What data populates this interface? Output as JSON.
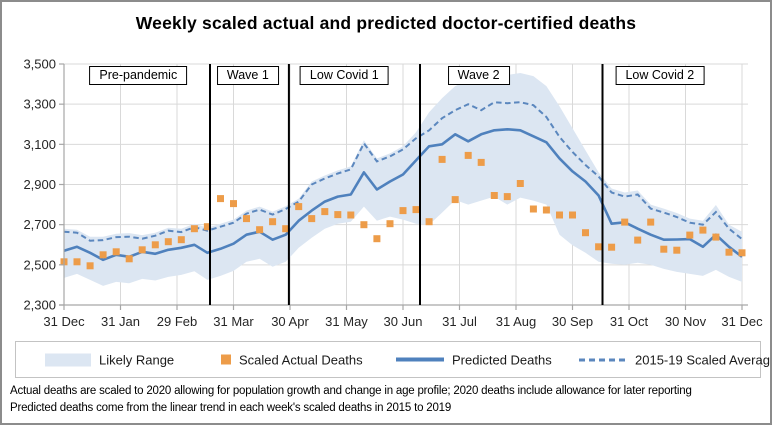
{
  "title": "Weekly scaled actual and predicted doctor-certified deaths",
  "footnotes": [
    "Actual deaths are scaled to 2020 allowing for population growth and change in age profile; 2020 deaths include allowance for later reporting",
    "Predicted deaths come from the linear trend in each week's scaled deaths in 2015 to 2019"
  ],
  "colors": {
    "line": "#4f81bd",
    "dashed_line": "#5b87be",
    "band": "#dce6f2",
    "marker": "#ed9c49",
    "grid": "#d9d9d9",
    "axis": "#a6a6a6",
    "tick_label": "#262626",
    "divider": "#000000"
  },
  "legend": [
    {
      "label": "Likely Range",
      "swatch": "band"
    },
    {
      "label": "Scaled Actual Deaths",
      "swatch": "square"
    },
    {
      "label": "Predicted Deaths",
      "swatch": "line"
    },
    {
      "label": "2015-19 Scaled Average",
      "swatch": "dashed"
    }
  ],
  "chart_data": {
    "type": "line",
    "title": "Weekly scaled actual and predicted doctor-certified deaths",
    "x_tick_labels": [
      "31 Dec",
      "31 Jan",
      "29 Feb",
      "31 Mar",
      "30 Apr",
      "31 May",
      "30 Jun",
      "31 Jul",
      "31 Aug",
      "30 Sep",
      "31 Oct",
      "30 Nov",
      "31 Dec"
    ],
    "y_min": 2300,
    "y_max": 3500,
    "y_tick_step": 200,
    "n_weeks": 53,
    "grid": true,
    "legend_position": "bottom",
    "period_dividers_week": [
      11.2,
      17.25,
      27.3,
      41.3
    ],
    "period_labels": [
      {
        "label": "Pre-pandemic",
        "center_week": 5.7
      },
      {
        "label": "Wave 1",
        "center_week": 14.1
      },
      {
        "label": "Low Covid 1",
        "center_week": 21.5
      },
      {
        "label": "Wave 2",
        "center_week": 31.8
      },
      {
        "label": "Low Covid 2",
        "center_week": 45.7
      }
    ],
    "series": [
      {
        "name": "Likely Range",
        "type": "band",
        "low": [
          2435,
          2455,
          2425,
          2395,
          2415,
          2408,
          2430,
          2422,
          2440,
          2450,
          2468,
          2425,
          2445,
          2470,
          2515,
          2530,
          2490,
          2515,
          2585,
          2635,
          2680,
          2705,
          2715,
          2790,
          2720,
          2740,
          2725,
          2705,
          2700,
          2760,
          2823,
          2800,
          2820,
          2840,
          2800,
          2835,
          2820,
          2800,
          2650,
          2598,
          2560,
          2515,
          2505,
          2500,
          2510,
          2500,
          2480,
          2465,
          2455,
          2445,
          2475,
          2440,
          2415
        ],
        "high": [
          2680,
          2675,
          2640,
          2640,
          2655,
          2658,
          2648,
          2660,
          2685,
          2680,
          2705,
          2685,
          2705,
          2725,
          2770,
          2790,
          2765,
          2792,
          2830,
          2915,
          2945,
          2970,
          2990,
          3120,
          3030,
          3055,
          3090,
          3160,
          3260,
          3330,
          3390,
          3420,
          3430,
          3450,
          3445,
          3455,
          3440,
          3390,
          3290,
          3180,
          3070,
          2960,
          2880,
          2860,
          2870,
          2800,
          2780,
          2758,
          2730,
          2720,
          2798,
          2700,
          2665
        ]
      },
      {
        "name": "Scaled Actual Deaths",
        "type": "scatter",
        "values": [
          2515,
          2515,
          2495,
          2550,
          2565,
          2530,
          2575,
          2600,
          2615,
          2625,
          2680,
          2690,
          2830,
          2805,
          2730,
          2675,
          2715,
          2680,
          2790,
          2730,
          2765,
          2750,
          2748,
          2700,
          2630,
          2705,
          2770,
          2775,
          2715,
          3025,
          2825,
          3045,
          3010,
          2845,
          2840,
          2905,
          2778,
          2773,
          2748,
          2748,
          2660,
          2590,
          2588,
          2713,
          2623,
          2713,
          2578,
          2573,
          2648,
          2673,
          2638,
          2563,
          2560
        ]
      },
      {
        "name": "Predicted Deaths",
        "type": "line",
        "style": "solid",
        "values": [
          2570,
          2590,
          2560,
          2525,
          2550,
          2540,
          2565,
          2555,
          2575,
          2585,
          2600,
          2560,
          2580,
          2605,
          2650,
          2665,
          2625,
          2650,
          2720,
          2770,
          2815,
          2840,
          2850,
          2960,
          2875,
          2915,
          2950,
          3020,
          3090,
          3100,
          3150,
          3115,
          3150,
          3170,
          3175,
          3170,
          3140,
          3110,
          3030,
          2965,
          2915,
          2845,
          2705,
          2712,
          2680,
          2650,
          2625,
          2626,
          2628,
          2590,
          2650,
          2590,
          2540
        ]
      },
      {
        "name": "2015-19 Scaled Average",
        "type": "line",
        "style": "dashed",
        "values": [
          2665,
          2660,
          2620,
          2623,
          2638,
          2640,
          2630,
          2645,
          2670,
          2663,
          2688,
          2670,
          2690,
          2710,
          2755,
          2775,
          2750,
          2778,
          2815,
          2900,
          2930,
          2955,
          2975,
          3105,
          3015,
          3040,
          3075,
          3130,
          3170,
          3230,
          3270,
          3300,
          3270,
          3310,
          3305,
          3310,
          3295,
          3236,
          3137,
          3062,
          2997,
          2940,
          2860,
          2840,
          2850,
          2780,
          2760,
          2738,
          2710,
          2700,
          2763,
          2680,
          2628
        ]
      }
    ]
  }
}
